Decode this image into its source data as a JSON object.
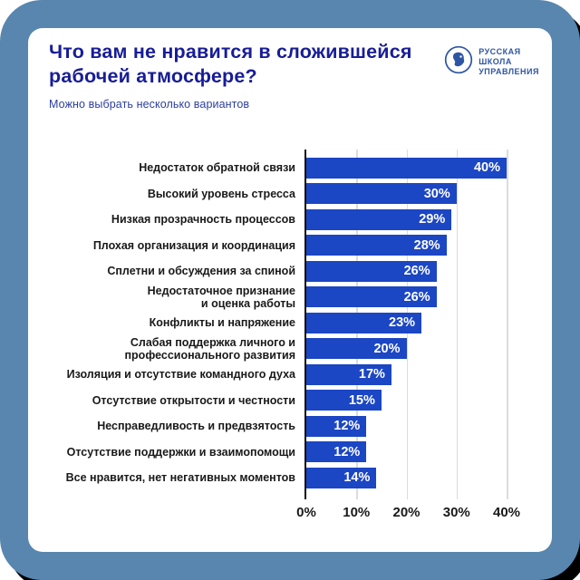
{
  "header": {
    "title": "Что вам не нравится в сложившейся\nрабочей атмосфере?",
    "subtitle": "Можно выбрать несколько вариантов",
    "logo_text": "РУССКАЯ\nШКОЛА\nУПРАВЛЕНИЯ"
  },
  "chart_data": {
    "type": "bar",
    "orientation": "horizontal",
    "title": "Что вам не нравится в сложившейся рабочей атмосфере?",
    "subtitle": "Можно выбрать несколько вариантов",
    "categories": [
      "Недостаток обратной связи",
      "Высокий уровень стресса",
      "Низкая прозрачность процессов",
      "Плохая организация и координация",
      "Сплетни и обсуждения за спиной",
      "Недостаточное признание\nи оценка работы",
      "Конфликты и напряжение",
      "Слабая поддержка личного и\nпрофессионального развития",
      "Изоляция и отсутствие командного духа",
      "Отсутствие открытости и честности",
      "Несправедливость и предвзятость",
      "Отсутствие поддержки и взаимопомощи",
      "Все нравится, нет негативных моментов"
    ],
    "values": [
      40,
      30,
      29,
      28,
      26,
      26,
      23,
      20,
      17,
      15,
      12,
      12,
      14
    ],
    "value_suffix": "%",
    "xticks": [
      "0%",
      "10%",
      "20%",
      "30%",
      "40%"
    ],
    "xtick_values": [
      0,
      10,
      20,
      30,
      40
    ],
    "xlim": [
      0,
      40
    ],
    "grid": true,
    "value_labels": "inside-end"
  },
  "colors": {
    "frame_blue": "#5886ae",
    "frame_shadow": "#000000",
    "card_bg": "#ffffff",
    "title_text": "#171d96",
    "subtitle_text": "#2c3f9d",
    "bar_fill": "#1b46c4",
    "bar_value_text": "#ffffff",
    "category_text": "#191919",
    "tick_text": "#191919",
    "gridline": "#dcdcdc",
    "axis_line": "#0c0c0c",
    "logo_blue": "#2e55a3"
  }
}
